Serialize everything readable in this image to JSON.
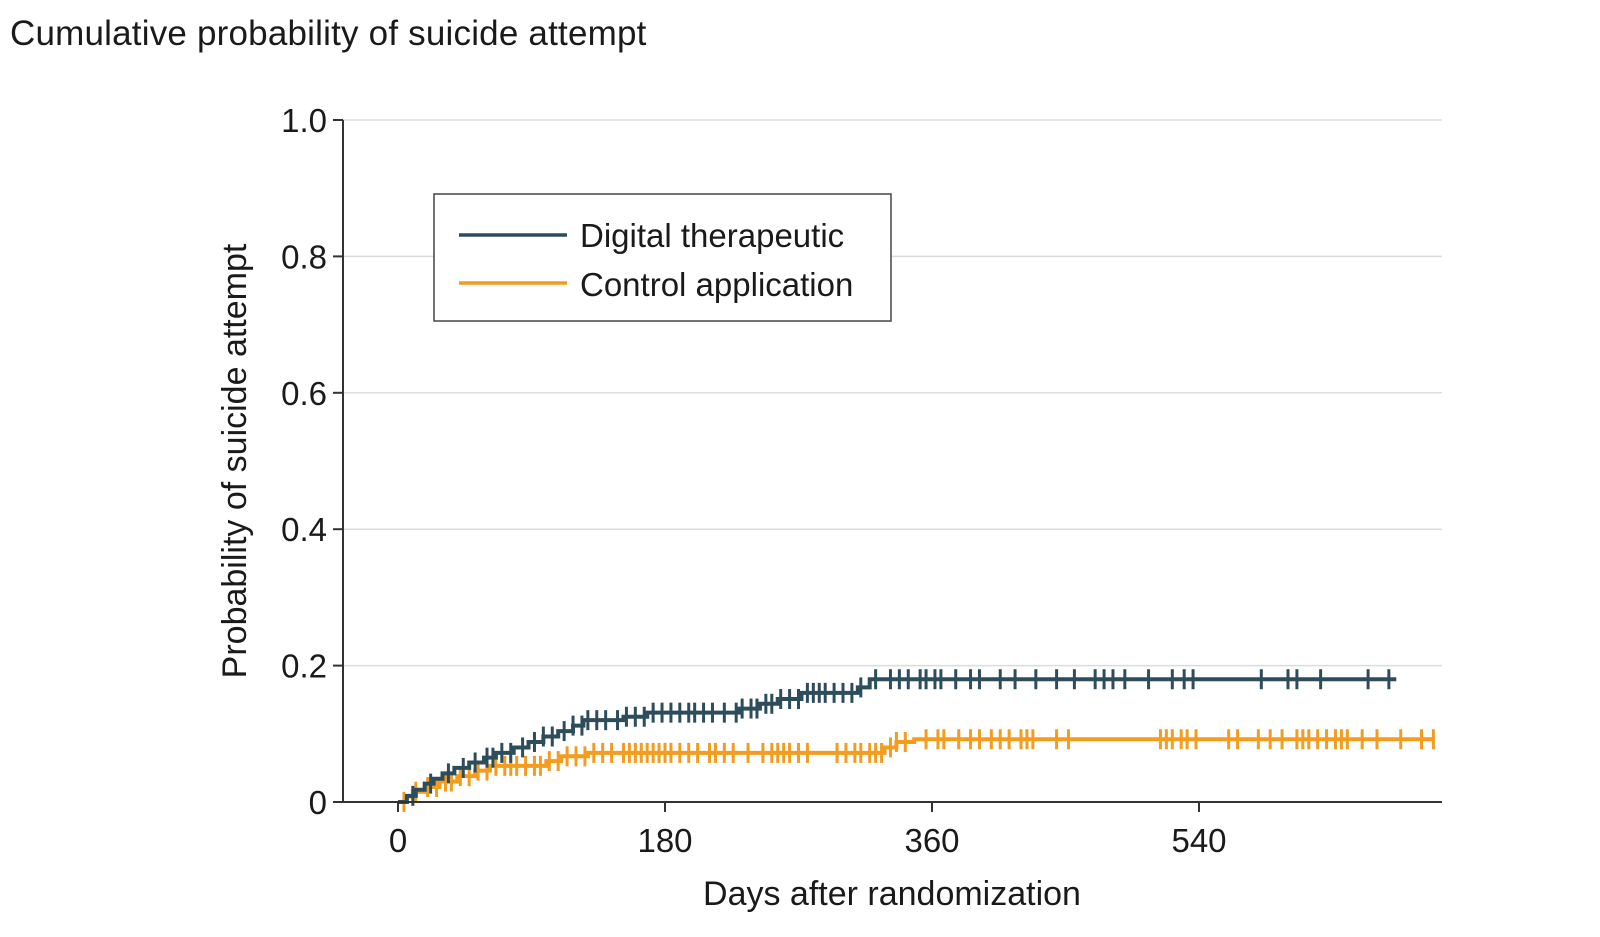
{
  "figure_title": "Cumulative probability of suicide attempt",
  "chart_data": {
    "type": "line",
    "title": "Cumulative probability of suicide attempt",
    "xlabel": "Days after randomization",
    "ylabel": "Probability of suicide attempt",
    "xlim": [
      -40,
      700
    ],
    "ylim": [
      0,
      1.0
    ],
    "x_ticks": [
      0,
      180,
      360,
      540
    ],
    "x_tick_labels": [
      "0",
      "180",
      "360",
      "540"
    ],
    "y_ticks": [
      0,
      0.2,
      0.4,
      0.6,
      0.8,
      1.0
    ],
    "y_tick_labels": [
      "0",
      "0.2",
      "0.4",
      "0.6",
      "0.8",
      "1.0"
    ],
    "grid": "horizontal",
    "legend_position": "top-left",
    "series": [
      {
        "name": "Digital therapeutic",
        "color": "#2e4d5c",
        "steps": [
          [
            0,
            0
          ],
          [
            6,
            0.009
          ],
          [
            12,
            0.018
          ],
          [
            18,
            0.027
          ],
          [
            24,
            0.034
          ],
          [
            30,
            0.042
          ],
          [
            38,
            0.05
          ],
          [
            48,
            0.058
          ],
          [
            58,
            0.065
          ],
          [
            66,
            0.072
          ],
          [
            78,
            0.08
          ],
          [
            88,
            0.088
          ],
          [
            98,
            0.096
          ],
          [
            108,
            0.104
          ],
          [
            118,
            0.112
          ],
          [
            125,
            0.12
          ],
          [
            152,
            0.125
          ],
          [
            168,
            0.131
          ],
          [
            230,
            0.137
          ],
          [
            244,
            0.144
          ],
          [
            256,
            0.151
          ],
          [
            272,
            0.16
          ],
          [
            310,
            0.168
          ],
          [
            318,
            0.18
          ],
          [
            673,
            0.18
          ]
        ],
        "censor_days": [
          10,
          22,
          34,
          44,
          52,
          60,
          64,
          70,
          76,
          84,
          92,
          98,
          104,
          112,
          118,
          124,
          128,
          134,
          140,
          148,
          154,
          160,
          166,
          172,
          178,
          184,
          190,
          196,
          200,
          206,
          212,
          220,
          228,
          232,
          238,
          242,
          248,
          252,
          258,
          264,
          270,
          276,
          280,
          284,
          288,
          294,
          300,
          306,
          312,
          322,
          332,
          338,
          344,
          352,
          356,
          362,
          366,
          376,
          386,
          392,
          406,
          416,
          430,
          444,
          456,
          470,
          476,
          482,
          490,
          506,
          522,
          530,
          536,
          582,
          600,
          606,
          622,
          654,
          668
        ]
      },
      {
        "name": "Control application",
        "color": "#f39c1e",
        "steps": [
          [
            0,
            0
          ],
          [
            5,
            0.008
          ],
          [
            10,
            0.015
          ],
          [
            18,
            0.022
          ],
          [
            28,
            0.03
          ],
          [
            40,
            0.038
          ],
          [
            52,
            0.046
          ],
          [
            62,
            0.053
          ],
          [
            100,
            0.06
          ],
          [
            110,
            0.067
          ],
          [
            128,
            0.072
          ],
          [
            328,
            0.08
          ],
          [
            336,
            0.088
          ],
          [
            348,
            0.092
          ],
          [
            698,
            0.092
          ]
        ],
        "censor_days": [
          4,
          12,
          20,
          26,
          32,
          36,
          42,
          48,
          54,
          60,
          66,
          72,
          76,
          80,
          86,
          92,
          96,
          102,
          108,
          114,
          120,
          126,
          132,
          138,
          144,
          152,
          156,
          160,
          164,
          168,
          172,
          176,
          180,
          184,
          190,
          196,
          202,
          210,
          214,
          220,
          226,
          236,
          246,
          252,
          256,
          260,
          264,
          270,
          276,
          296,
          302,
          308,
          312,
          318,
          322,
          326,
          332,
          336,
          342,
          356,
          364,
          368,
          378,
          386,
          392,
          400,
          406,
          412,
          420,
          424,
          428,
          444,
          452,
          514,
          518,
          522,
          528,
          532,
          538,
          560,
          566,
          580,
          588,
          596,
          606,
          610,
          614,
          620,
          626,
          632,
          636,
          640,
          650,
          660,
          676,
          690,
          698
        ]
      }
    ]
  }
}
